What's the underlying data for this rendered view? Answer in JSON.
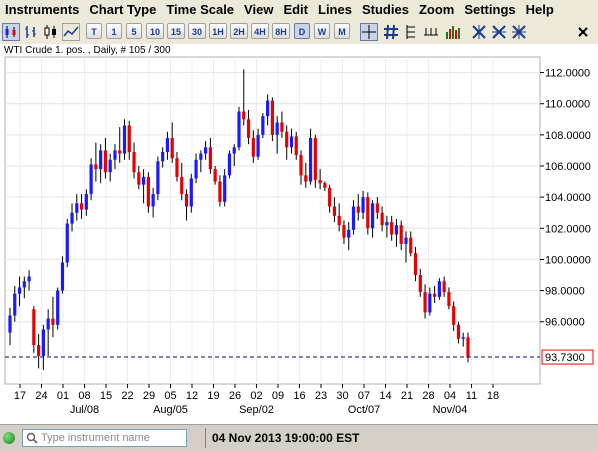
{
  "menu": [
    "Instruments",
    "Chart Type",
    "Time Scale",
    "View",
    "Edit",
    "Lines",
    "Studies",
    "Zoom",
    "Settings",
    "Help"
  ],
  "toolbar": {
    "timeframes": [
      "T",
      "1",
      "5",
      "10",
      "15",
      "30",
      "1H",
      "2H",
      "4H",
      "8H",
      "D",
      "W",
      "M"
    ],
    "active_timeframe": "D"
  },
  "chart_title": "WTI Crude 1. pos. , Daily, # 105 / 300",
  "colors": {
    "bull": "#1a1aff",
    "bear": "#e60000",
    "wick": "#000000",
    "price_line": "#00008b",
    "last_price_border": "#ff0000",
    "accent": "#ff0000"
  },
  "chart_data": {
    "type": "candlestick",
    "ylim": [
      92.0,
      113.0
    ],
    "ytick_labels": [
      "96.0000",
      "98.0000",
      "100.0000",
      "102.0000",
      "104.0000",
      "106.0000",
      "108.0000",
      "110.0000",
      "112.0000"
    ],
    "yticks": [
      96,
      98,
      100,
      102,
      104,
      106,
      108,
      110,
      112
    ],
    "xtick_labels": [
      "17",
      "24",
      "01",
      "08",
      "15",
      "22",
      "29",
      "05",
      "12",
      "19",
      "26",
      "02",
      "09",
      "16",
      "23",
      "30",
      "07",
      "14",
      "21",
      "28",
      "04",
      "11",
      "18"
    ],
    "month_labels": [
      {
        "label": "Jul/08",
        "tick": "08"
      },
      {
        "label": "Aug/05",
        "tick": "05"
      },
      {
        "label": "Sep/02",
        "tick": "02"
      },
      {
        "label": "Oct/07",
        "tick": "07"
      },
      {
        "label": "Nov/04",
        "tick": "04"
      }
    ],
    "last_price": 93.73,
    "last_price_label": "93.7300",
    "date_readout": "04 Nov 2013 19:00:00 EST",
    "grid": true,
    "candles": [
      [
        95.3,
        96.9,
        94.5,
        96.4
      ],
      [
        96.4,
        98.3,
        96.0,
        97.8
      ],
      [
        97.8,
        98.9,
        97.0,
        98.2
      ],
      [
        98.2,
        98.9,
        97.5,
        98.6
      ],
      [
        98.6,
        99.3,
        98.0,
        98.9
      ],
      [
        96.8,
        97.0,
        94.0,
        94.5
      ],
      [
        94.5,
        95.2,
        93.0,
        93.8
      ],
      [
        93.8,
        95.8,
        92.9,
        95.5
      ],
      [
        95.5,
        96.8,
        93.8,
        96.2
      ],
      [
        96.2,
        97.6,
        95.0,
        95.8
      ],
      [
        95.8,
        98.2,
        95.5,
        98.0
      ],
      [
        98.0,
        100.2,
        97.8,
        99.8
      ],
      [
        99.8,
        102.6,
        99.5,
        102.3
      ],
      [
        102.3,
        103.6,
        101.8,
        103.0
      ],
      [
        103.0,
        104.2,
        102.5,
        103.6
      ],
      [
        103.6,
        104.2,
        102.6,
        103.2
      ],
      [
        103.2,
        104.5,
        102.8,
        104.2
      ],
      [
        104.2,
        106.5,
        103.8,
        106.1
      ],
      [
        106.1,
        107.5,
        105.0,
        105.8
      ],
      [
        105.8,
        107.4,
        104.9,
        107.0
      ],
      [
        107.0,
        107.8,
        105.2,
        105.6
      ],
      [
        105.6,
        106.8,
        105.0,
        106.4
      ],
      [
        106.4,
        107.4,
        105.8,
        107.0
      ],
      [
        107.0,
        108.5,
        106.2,
        106.8
      ],
      [
        106.8,
        109.0,
        106.4,
        108.6
      ],
      [
        108.6,
        108.9,
        106.4,
        106.9
      ],
      [
        106.9,
        107.5,
        105.2,
        105.6
      ],
      [
        105.6,
        106.0,
        104.5,
        104.8
      ],
      [
        104.8,
        105.8,
        103.6,
        105.3
      ],
      [
        105.3,
        105.6,
        103.0,
        103.4
      ],
      [
        103.4,
        104.6,
        102.7,
        104.2
      ],
      [
        104.2,
        106.6,
        103.8,
        106.3
      ],
      [
        106.3,
        107.2,
        105.9,
        106.9
      ],
      [
        106.9,
        108.2,
        106.4,
        107.8
      ],
      [
        107.8,
        108.8,
        106.2,
        106.5
      ],
      [
        106.5,
        106.9,
        105.0,
        105.3
      ],
      [
        105.3,
        106.2,
        103.8,
        104.2
      ],
      [
        104.2,
        104.5,
        102.5,
        103.4
      ],
      [
        103.4,
        105.5,
        103.0,
        105.2
      ],
      [
        105.2,
        106.8,
        104.9,
        106.4
      ],
      [
        106.4,
        107.0,
        105.6,
        106.8
      ],
      [
        106.8,
        107.6,
        106.4,
        107.2
      ],
      [
        107.2,
        107.8,
        105.5,
        105.8
      ],
      [
        105.8,
        106.0,
        104.8,
        105.0
      ],
      [
        105.0,
        105.4,
        103.4,
        103.7
      ],
      [
        103.7,
        105.8,
        103.4,
        105.4
      ],
      [
        105.4,
        107.0,
        105.2,
        106.8
      ],
      [
        106.8,
        107.4,
        106.0,
        107.2
      ],
      [
        107.2,
        109.8,
        107.0,
        109.5
      ],
      [
        109.5,
        112.2,
        108.6,
        109.0
      ],
      [
        109.0,
        109.6,
        107.4,
        107.8
      ],
      [
        107.8,
        108.3,
        106.2,
        106.6
      ],
      [
        106.6,
        108.4,
        106.4,
        108.0
      ],
      [
        108.0,
        109.4,
        107.8,
        109.2
      ],
      [
        109.2,
        110.6,
        108.6,
        110.2
      ],
      [
        110.2,
        110.4,
        107.6,
        108.0
      ],
      [
        108.0,
        109.2,
        106.8,
        108.8
      ],
      [
        108.8,
        109.5,
        107.8,
        108.2
      ],
      [
        108.2,
        108.6,
        106.4,
        107.2
      ],
      [
        107.2,
        108.4,
        106.8,
        107.9
      ],
      [
        107.9,
        108.2,
        106.4,
        106.7
      ],
      [
        106.7,
        107.0,
        104.8,
        105.4
      ],
      [
        105.4,
        106.2,
        104.6,
        105.0
      ],
      [
        105.0,
        108.4,
        104.8,
        107.8
      ],
      [
        107.8,
        108.0,
        104.6,
        105.1
      ],
      [
        105.1,
        105.8,
        104.5,
        104.9
      ],
      [
        104.9,
        105.0,
        104.4,
        104.6
      ],
      [
        104.6,
        104.8,
        103.0,
        103.4
      ],
      [
        103.4,
        104.0,
        102.4,
        102.8
      ],
      [
        102.8,
        103.6,
        101.8,
        102.2
      ],
      [
        102.2,
        102.5,
        101.0,
        101.4
      ],
      [
        101.4,
        102.4,
        100.6,
        101.9
      ],
      [
        101.9,
        103.8,
        101.6,
        103.4
      ],
      [
        103.4,
        104.2,
        102.5,
        103.0
      ],
      [
        103.0,
        104.4,
        102.6,
        104.0
      ],
      [
        104.0,
        104.3,
        101.6,
        102.0
      ],
      [
        102.0,
        103.8,
        101.4,
        103.6
      ],
      [
        103.6,
        104.0,
        102.6,
        103.0
      ],
      [
        103.0,
        103.4,
        101.8,
        102.2
      ],
      [
        102.2,
        102.8,
        101.4,
        102.4
      ],
      [
        102.4,
        102.8,
        101.2,
        101.6
      ],
      [
        101.6,
        102.6,
        100.8,
        102.2
      ],
      [
        102.2,
        102.5,
        100.6,
        101.0
      ],
      [
        101.0,
        101.8,
        99.8,
        101.4
      ],
      [
        101.4,
        101.8,
        100.2,
        100.4
      ],
      [
        100.4,
        100.8,
        98.6,
        99.0
      ],
      [
        99.0,
        99.4,
        97.6,
        97.9
      ],
      [
        97.9,
        98.4,
        96.2,
        96.6
      ],
      [
        96.6,
        98.2,
        96.4,
        97.8
      ],
      [
        97.8,
        98.3,
        97.2,
        97.6
      ],
      [
        97.6,
        98.8,
        97.4,
        98.6
      ],
      [
        98.6,
        98.9,
        97.6,
        97.9
      ],
      [
        97.9,
        98.2,
        96.8,
        97.0
      ],
      [
        97.0,
        97.3,
        95.4,
        95.8
      ],
      [
        95.8,
        96.0,
        94.6,
        94.9
      ],
      [
        94.9,
        95.3,
        94.4,
        95.0
      ],
      [
        95.0,
        95.3,
        93.4,
        93.7
      ]
    ]
  },
  "status": {
    "search_placeholder": "Type instrument name"
  }
}
